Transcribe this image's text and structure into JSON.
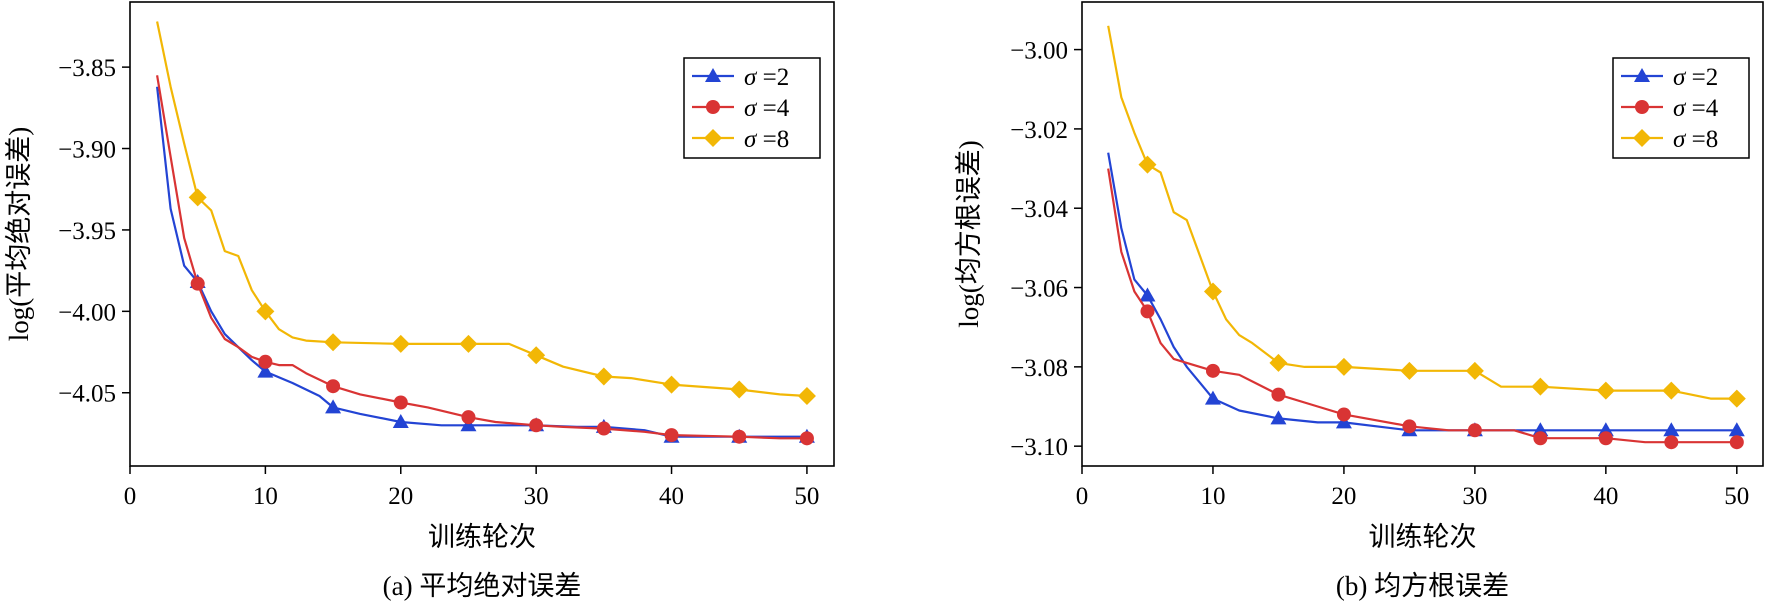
{
  "colors": {
    "sigma2": "#2344d4",
    "sigma4": "#d93434",
    "sigma8": "#f2b705"
  },
  "chart_data": [
    {
      "type": "line",
      "caption": "(a) 平均绝对误差",
      "xlabel": "训练轮次",
      "ylabel": "log(平均绝对误差)",
      "xlim": [
        0,
        52
      ],
      "ylim": [
        -4.095,
        -3.81
      ],
      "xticks": [
        0,
        10,
        20,
        30,
        40,
        50
      ],
      "xtick_labels": [
        "0",
        "10",
        "20",
        "30",
        "40",
        "50"
      ],
      "yticks": [
        -3.85,
        -3.9,
        -3.95,
        -4.0,
        -4.05
      ],
      "ytick_labels": [
        "−3.85",
        "−3.90",
        "−3.95",
        "−4.00",
        "−4.05"
      ],
      "legend_position": "top-right",
      "marker_x": [
        5,
        10,
        15,
        20,
        25,
        30,
        35,
        40,
        45,
        50
      ],
      "series": [
        {
          "name": "σ =2",
          "legend_sym": "σ",
          "legend_val": "=2",
          "color": "#2344d4",
          "marker": "triangle",
          "x": [
            2,
            3,
            4,
            5,
            6,
            7,
            8,
            9,
            10,
            12,
            14,
            15,
            17,
            20,
            23,
            25,
            28,
            30,
            33,
            35,
            38,
            40,
            45,
            50
          ],
          "y": [
            -3.862,
            -3.937,
            -3.972,
            -3.982,
            -4.0,
            -4.014,
            -4.022,
            -4.03,
            -4.037,
            -4.044,
            -4.052,
            -4.059,
            -4.063,
            -4.068,
            -4.07,
            -4.07,
            -4.07,
            -4.07,
            -4.071,
            -4.071,
            -4.073,
            -4.077,
            -4.077,
            -4.077
          ]
        },
        {
          "name": "σ =4",
          "legend_sym": "σ",
          "legend_val": "=4",
          "color": "#d93434",
          "marker": "circle",
          "x": [
            2,
            3,
            4,
            5,
            6,
            7,
            8,
            9,
            10,
            11,
            12,
            13,
            15,
            17,
            20,
            22,
            25,
            27,
            30,
            32,
            35,
            38,
            40,
            45,
            48,
            50
          ],
          "y": [
            -3.855,
            -3.905,
            -3.955,
            -3.983,
            -4.004,
            -4.017,
            -4.022,
            -4.028,
            -4.031,
            -4.033,
            -4.033,
            -4.038,
            -4.046,
            -4.051,
            -4.056,
            -4.059,
            -4.065,
            -4.068,
            -4.07,
            -4.071,
            -4.072,
            -4.074,
            -4.076,
            -4.077,
            -4.078,
            -4.078
          ]
        },
        {
          "name": "σ =8",
          "legend_sym": "σ",
          "legend_val": "=8",
          "color": "#f2b705",
          "marker": "diamond",
          "x": [
            2,
            3,
            4,
            5,
            6,
            7,
            8,
            9,
            10,
            11,
            12,
            13,
            15,
            20,
            25,
            28,
            30,
            32,
            35,
            37,
            40,
            45,
            48,
            50
          ],
          "y": [
            -3.822,
            -3.862,
            -3.897,
            -3.93,
            -3.938,
            -3.963,
            -3.966,
            -3.987,
            -4.0,
            -4.011,
            -4.016,
            -4.018,
            -4.019,
            -4.02,
            -4.02,
            -4.02,
            -4.027,
            -4.034,
            -4.04,
            -4.041,
            -4.045,
            -4.048,
            -4.051,
            -4.052
          ]
        }
      ]
    },
    {
      "type": "line",
      "caption": "(b) 均方根误差",
      "xlabel": "训练轮次",
      "ylabel": "log(均方根误差)",
      "xlim": [
        0,
        52
      ],
      "ylim": [
        -3.105,
        -2.988
      ],
      "xticks": [
        0,
        10,
        20,
        30,
        40,
        50
      ],
      "xtick_labels": [
        "0",
        "10",
        "20",
        "30",
        "40",
        "50"
      ],
      "yticks": [
        -3.0,
        -3.02,
        -3.04,
        -3.06,
        -3.08,
        -3.1
      ],
      "ytick_labels": [
        "−3.00",
        "−3.02",
        "−3.04",
        "−3.06",
        "−3.08",
        "−3.10"
      ],
      "legend_position": "top-right",
      "marker_x": [
        5,
        10,
        15,
        20,
        25,
        30,
        35,
        40,
        45,
        50
      ],
      "series": [
        {
          "name": "σ =2",
          "legend_sym": "σ",
          "legend_val": "=2",
          "color": "#2344d4",
          "marker": "triangle",
          "x": [
            2,
            3,
            4,
            5,
            6,
            7,
            8,
            9,
            10,
            12,
            15,
            18,
            20,
            25,
            30,
            35,
            40,
            45,
            50
          ],
          "y": [
            -3.026,
            -3.045,
            -3.058,
            -3.062,
            -3.068,
            -3.075,
            -3.08,
            -3.084,
            -3.088,
            -3.091,
            -3.093,
            -3.094,
            -3.094,
            -3.096,
            -3.096,
            -3.096,
            -3.096,
            -3.096,
            -3.096
          ]
        },
        {
          "name": "σ =4",
          "legend_sym": "σ",
          "legend_val": "=4",
          "color": "#d93434",
          "marker": "circle",
          "x": [
            2,
            3,
            4,
            5,
            6,
            7,
            8,
            10,
            12,
            15,
            18,
            20,
            25,
            28,
            30,
            33,
            35,
            40,
            43,
            45,
            50
          ],
          "y": [
            -3.03,
            -3.051,
            -3.061,
            -3.066,
            -3.074,
            -3.078,
            -3.079,
            -3.081,
            -3.082,
            -3.087,
            -3.09,
            -3.092,
            -3.095,
            -3.096,
            -3.096,
            -3.096,
            -3.098,
            -3.098,
            -3.099,
            -3.099,
            -3.099
          ]
        },
        {
          "name": "σ =8",
          "legend_sym": "σ",
          "legend_val": "=8",
          "color": "#f2b705",
          "marker": "diamond",
          "x": [
            2,
            3,
            4,
            5,
            6,
            7,
            8,
            9,
            10,
            11,
            12,
            13,
            15,
            17,
            20,
            25,
            30,
            32,
            35,
            40,
            45,
            48,
            50
          ],
          "y": [
            -2.994,
            -3.012,
            -3.021,
            -3.029,
            -3.031,
            -3.041,
            -3.043,
            -3.052,
            -3.061,
            -3.068,
            -3.072,
            -3.074,
            -3.079,
            -3.08,
            -3.08,
            -3.081,
            -3.081,
            -3.085,
            -3.085,
            -3.086,
            -3.086,
            -3.088,
            -3.088
          ]
        }
      ]
    }
  ]
}
